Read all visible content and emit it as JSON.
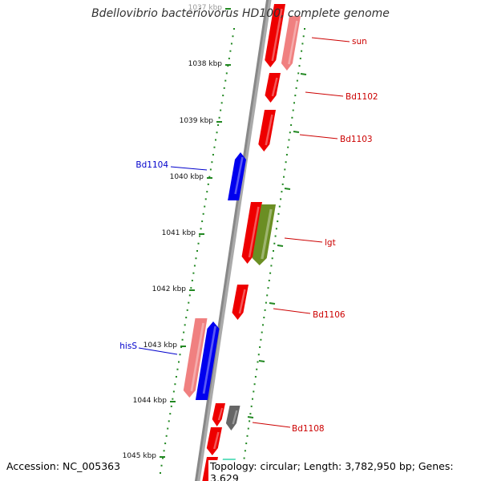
{
  "title": "Bdellovibrio bacteriovorus HD100, complete genome",
  "footer": {
    "accession": "Accession: NC_005363",
    "topology": "Topology: circular; Length: 3,782,950 bp; Genes: 3,629"
  },
  "colors": {
    "forward_gene": "#ee0000",
    "light_red_gene": "#f08080",
    "reverse_gene": "#0000ee",
    "olive_gene": "#6b8e23",
    "grey_gene": "#666666",
    "teal_gene": "#66e0c0",
    "backbone": "#888888",
    "tick": "#228822",
    "forward_label": "#cc0000",
    "reverse_label": "#0000cc"
  },
  "scale_labels": [
    "1037 kbp",
    "1038 kbp",
    "1039 kbp",
    "1040 kbp",
    "1041 kbp",
    "1042 kbp",
    "1043 kbp",
    "1044 kbp",
    "1045 kbp"
  ],
  "gene_labels": [
    {
      "text": "sun",
      "strand": "forward"
    },
    {
      "text": "Bd1102",
      "strand": "forward"
    },
    {
      "text": "Bd1103",
      "strand": "forward"
    },
    {
      "text": "Bd1104",
      "strand": "reverse"
    },
    {
      "text": "lgt",
      "strand": "forward"
    },
    {
      "text": "Bd1106",
      "strand": "forward"
    },
    {
      "text": "hisS",
      "strand": "reverse"
    },
    {
      "text": "Bd1108",
      "strand": "forward"
    }
  ]
}
